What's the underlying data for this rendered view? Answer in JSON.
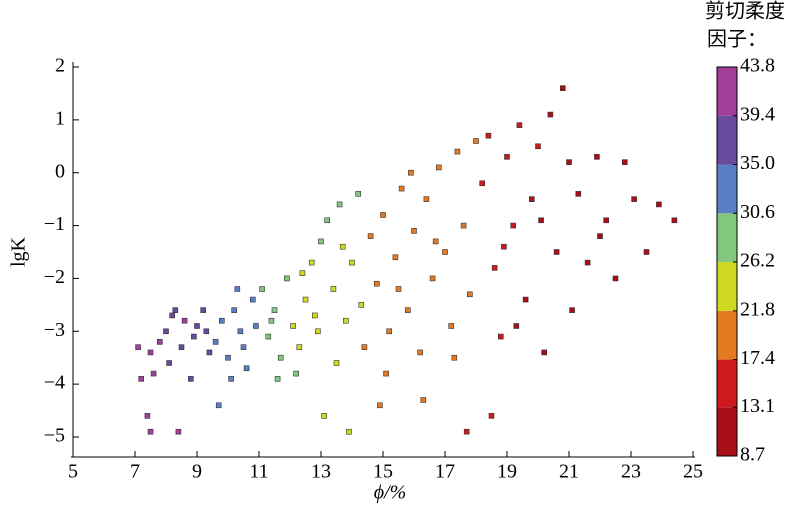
{
  "chart_data": {
    "type": "scatter",
    "x_label": "ϕ/%",
    "y_label": "lgK",
    "colorbar_title": [
      "剪切柔度",
      "因子："
    ],
    "xlim": [
      5,
      25
    ],
    "xticks": [
      5,
      7,
      9,
      11,
      13,
      15,
      17,
      19,
      21,
      23,
      25
    ],
    "ylim": [
      -5,
      2
    ],
    "yticks": [
      2,
      1,
      0,
      {
        "value": -1,
        "label": "−1"
      },
      {
        "value": -2,
        "label": "−2"
      },
      {
        "value": -3,
        "label": "−3"
      },
      {
        "value": -4,
        "label": "−4"
      },
      {
        "value": -5,
        "label": "−5"
      }
    ],
    "clim": [
      8.7,
      43.8
    ],
    "cticks": [
      8.7,
      13.1,
      17.4,
      21.8,
      26.2,
      30.6,
      {
        "value": 35,
        "label": "35.0"
      },
      39.4,
      43.8
    ],
    "colors": [
      "#a50f15",
      "#cc1a1e",
      "#e57a22",
      "#d0d921",
      "#82c77e",
      "#5b7fc4",
      "#6a4a9e",
      "#a23e98"
    ],
    "x": [
      7.2,
      7.5,
      7.8,
      8.0,
      8.3,
      8.6,
      8.9,
      9.2,
      9.4,
      7.4,
      7.6,
      8.1,
      8.5,
      9.0,
      7.1,
      7.5,
      8.4,
      8.8,
      9.3,
      8.2,
      9.6,
      9.8,
      10.0,
      10.2,
      10.4,
      10.6,
      10.8,
      10.1,
      9.7,
      10.5,
      10.9,
      10.3,
      11.1,
      11.3,
      11.5,
      11.7,
      11.9,
      12.1,
      12.3,
      12.5,
      12.7,
      12.9,
      12.2,
      11.6,
      12.8,
      13.0,
      12.4,
      11.4,
      13.2,
      13.4,
      13.6,
      13.8,
      14.0,
      14.2,
      14.4,
      13.5,
      13.9,
      13.1,
      14.3,
      13.7,
      14.6,
      14.8,
      15.0,
      15.2,
      15.4,
      15.6,
      15.8,
      16.0,
      16.2,
      16.4,
      16.6,
      16.8,
      17.0,
      17.2,
      17.4,
      17.6,
      17.8,
      18.0,
      15.1,
      16.3,
      14.9,
      17.3,
      15.5,
      16.7,
      15.9,
      18.2,
      18.4,
      18.6,
      18.8,
      19.0,
      19.2,
      19.4,
      19.6,
      19.8,
      20.0,
      20.2,
      20.4,
      20.6,
      20.8,
      21.0,
      18.5,
      17.7,
      19.3,
      20.1,
      18.9,
      21.3,
      21.6,
      21.9,
      22.2,
      22.5,
      22.8,
      23.1,
      23.5,
      23.9,
      24.4,
      21.1,
      22.0
    ],
    "values": [
      -3.9,
      -3.4,
      -3.2,
      -3.0,
      -2.6,
      -2.8,
      -3.1,
      -2.6,
      -3.4,
      -4.6,
      -3.8,
      -3.6,
      -3.3,
      -2.9,
      -3.3,
      -4.9,
      -4.9,
      -3.9,
      -3.0,
      -2.7,
      -3.2,
      -2.8,
      -3.5,
      -2.6,
      -3.0,
      -3.7,
      -2.4,
      -3.9,
      -4.4,
      -3.3,
      -2.9,
      -2.2,
      -2.2,
      -3.1,
      -2.6,
      -3.5,
      -2.0,
      -2.9,
      -3.3,
      -2.4,
      -1.7,
      -3.0,
      -3.8,
      -3.9,
      -2.7,
      -1.3,
      -1.9,
      -2.8,
      -0.9,
      -2.2,
      -0.6,
      -2.8,
      -1.7,
      -0.4,
      -3.3,
      -3.6,
      -4.9,
      -4.6,
      -2.5,
      -1.4,
      -1.2,
      -2.1,
      -0.8,
      -3.0,
      -1.6,
      -0.3,
      -2.6,
      -1.1,
      -3.4,
      -0.5,
      -2.0,
      0.1,
      -1.5,
      -2.9,
      0.4,
      -1.0,
      -2.3,
      0.6,
      -3.8,
      -4.3,
      -4.4,
      -3.5,
      -2.2,
      -1.3,
      0.0,
      -0.2,
      0.7,
      -1.8,
      -3.1,
      0.3,
      -1.0,
      0.9,
      -2.4,
      -0.5,
      0.5,
      -3.4,
      1.1,
      -1.5,
      1.6,
      0.2,
      -4.6,
      -4.9,
      -2.9,
      -0.9,
      -1.4,
      -0.4,
      -1.7,
      0.3,
      -0.9,
      -2.0,
      0.2,
      -0.5,
      -1.5,
      -0.6,
      -0.9,
      -2.6,
      -1.2
    ],
    "color_values": [
      40,
      41,
      40,
      39,
      38,
      40,
      37,
      36,
      36,
      42,
      41,
      39,
      38,
      37,
      42,
      42,
      40,
      38,
      36,
      38,
      34,
      33,
      33,
      32,
      33,
      32,
      31,
      33,
      34,
      32,
      31,
      31,
      29,
      28,
      27,
      28,
      27,
      26,
      26,
      25,
      26,
      25,
      27,
      28,
      24,
      27,
      26,
      29,
      28,
      23,
      27,
      22,
      22,
      29,
      21,
      23,
      24,
      25,
      22,
      24,
      20,
      19,
      19,
      20,
      19,
      19,
      18,
      19,
      18,
      19,
      18,
      19,
      18,
      18,
      19,
      18,
      18,
      19,
      20,
      19,
      20,
      18,
      19,
      18,
      19,
      15,
      16,
      14,
      14,
      15,
      14,
      15,
      13,
      13,
      14,
      13,
      12,
      12,
      12,
      12,
      14,
      15,
      13,
      12,
      14,
      11,
      11,
      10,
      11,
      11,
      10,
      10,
      10,
      10,
      10,
      11,
      11
    ]
  }
}
